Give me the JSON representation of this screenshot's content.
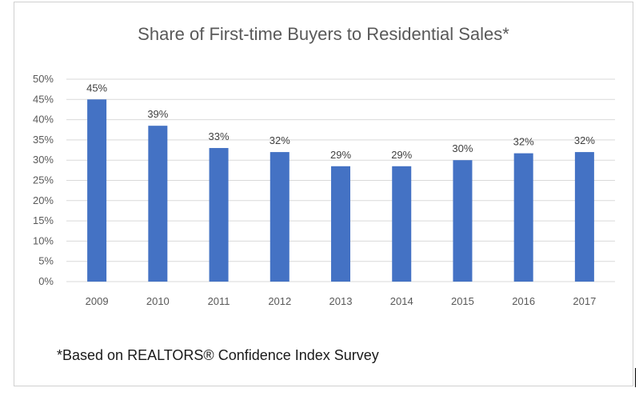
{
  "chart_data": {
    "type": "bar",
    "title": "Share of First-time Buyers to Residential Sales*",
    "categories": [
      "2009",
      "2010",
      "2011",
      "2012",
      "2013",
      "2014",
      "2015",
      "2016",
      "2017"
    ],
    "series": [
      {
        "values": [
          45,
          38.5,
          33,
          32,
          28.5,
          28.5,
          30,
          31.7,
          32
        ],
        "data_labels": [
          "45%",
          "39%",
          "33%",
          "32%",
          "29%",
          "29%",
          "30%",
          "32%",
          "32%"
        ]
      }
    ],
    "y_ticks": [
      "0%",
      "5%",
      "10%",
      "15%",
      "20%",
      "25%",
      "30%",
      "35%",
      "40%",
      "45%",
      "50%"
    ],
    "ylim": [
      0,
      50
    ],
    "y_step": 5,
    "grid": true,
    "bar_color": "#4472c4",
    "grid_color": "#d9d9d9",
    "footnote": "*Based on REALTORS® Confidence Index Survey"
  }
}
